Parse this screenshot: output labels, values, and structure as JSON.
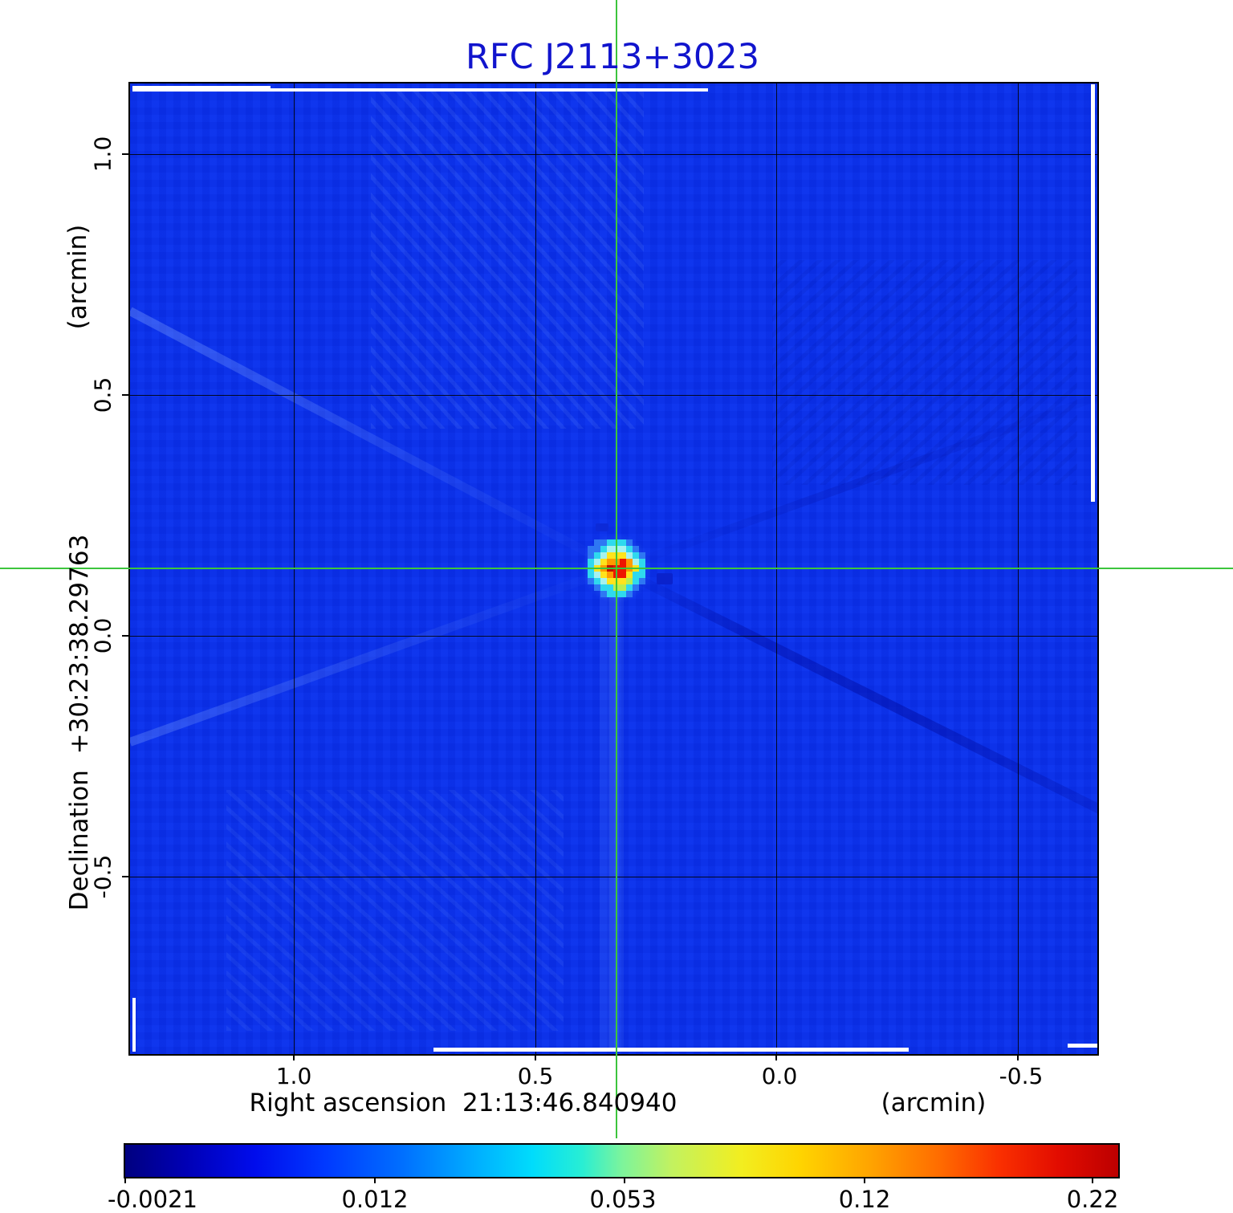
{
  "title": "RFC J2113+3023",
  "plot": {
    "x_axis": {
      "label": "Right ascension  21:13:46.840940",
      "unit": "(arcmin)",
      "ticks": [
        "1.0",
        "0.5",
        "0.0",
        "-0.5"
      ]
    },
    "y_axis": {
      "label": "Declination  +30:23:38.29763",
      "unit": "(arcmin)",
      "ticks": [
        "1.0",
        "0.5",
        "0.0",
        "-0.5"
      ]
    }
  },
  "colorbar": {
    "labels": [
      "-0.0021",
      "0.012",
      "0.053",
      "0.12",
      "0.22"
    ]
  },
  "colors": {
    "title_blue": "#1114cd",
    "crosshair_green": "#3cc53c",
    "image_background_blue": "#0a31ec",
    "grid_black": "#000000",
    "colorbar_min_navy": "#000080",
    "colorbar_max_dark_red": "#bc0000",
    "source_core_red": "#ee1500"
  },
  "source_blob": {
    "palette": {
      "B": "transparent",
      "d": "#0b28d8",
      "b": "#2e77f3",
      "c": "#2fd9ee",
      "C": "#a5f2f0",
      "g": "#b9ee4f",
      "y": "#ffe31c",
      "o": "#ff9b00",
      "r": "#ee1500",
      "R": "#c01300"
    },
    "rows": [
      "BbbcccbBB",
      "bbcCCCcbB",
      "bcCyyyCcb",
      "cCyooroCc",
      "cyoRrroyc",
      "cCyorrycc",
      "bcCyyygcb",
      "BbccggcbB",
      "BBbcccbBB"
    ]
  },
  "chart_data": {
    "type": "heatmap",
    "title": "RFC J2113+3023",
    "xlabel": "Right ascension  21:13:46.840940 (arcmin)",
    "ylabel": "Declination  +30:23:38.29763 (arcmin)",
    "x_ticks_arcmin": [
      1.0,
      0.5,
      0.0,
      -0.5
    ],
    "y_ticks_arcmin": [
      1.0,
      0.5,
      0.0,
      -0.5
    ],
    "x_range_arcmin": [
      1.35,
      -0.67
    ],
    "y_range_arcmin": [
      1.15,
      -0.87
    ],
    "grid": true,
    "legend_position": "none",
    "colorbar": {
      "orientation": "horizontal",
      "tick_values": [
        -0.0021,
        0.012,
        0.053,
        0.12,
        0.22
      ],
      "scale": "nonlinear",
      "colormap": "rainbow (navy-blue-cyan-green-yellow-orange-red)"
    },
    "crosshair": {
      "ra_offset_arcmin": 0.33,
      "dec_offset_arcmin": 0.14
    },
    "source": {
      "ra_offset_arcmin": 0.33,
      "dec_offset_arcmin": 0.14,
      "peak_intensity": 0.22,
      "shape": "compact point source with concentric red/orange/yellow/cyan pixel rings"
    },
    "background_appearance": "uniform blue with faint X-shaped sidelobe streaks and white blanked edge strips"
  }
}
